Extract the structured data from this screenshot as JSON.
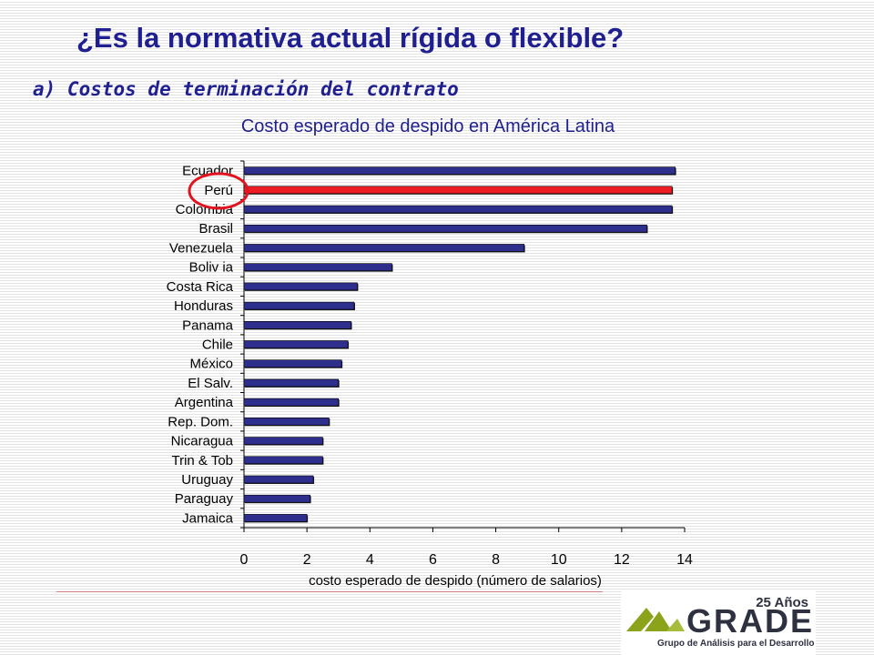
{
  "slide": {
    "title": "¿Es la normativa actual rígida o flexible?",
    "subtitle": "a) Costos de terminación del contrato"
  },
  "colors": {
    "bar": "#2e2e8c",
    "highlight_bar": "#ee1c24",
    "highlight_circle": "#e0141e",
    "title_text": "#1f1f8f",
    "logo_green": "#8aa31b"
  },
  "chart_data": {
    "type": "bar",
    "orientation": "horizontal",
    "title": "Costo esperado de despido en América Latina",
    "xlabel": "costo esperado de despido (número de salarios)",
    "ylabel": "",
    "xlim": [
      0,
      14
    ],
    "xticks": [
      0,
      2,
      4,
      6,
      8,
      10,
      12,
      14
    ],
    "categories": [
      "Ecuador",
      "Perú",
      "Colombia",
      "Brasil",
      "Venezuela",
      "Boliv ia",
      "Costa Rica",
      "Honduras",
      "Panama",
      "Chile",
      "México",
      "El Salv.",
      "Argentina",
      "Rep. Dom.",
      "Nicaragua",
      "Trin & Tob",
      "Uruguay",
      "Paraguay",
      "Jamaica"
    ],
    "values": [
      13.7,
      13.6,
      13.6,
      12.8,
      8.9,
      4.7,
      3.6,
      3.5,
      3.4,
      3.3,
      3.1,
      3.0,
      3.0,
      2.7,
      2.5,
      2.5,
      2.2,
      2.1,
      2.0
    ],
    "highlight": "Perú",
    "grid": false,
    "legend": "none"
  },
  "logo": {
    "years": "25 Años",
    "wordmark": "GRADE",
    "tagline": "Grupo de Análisis para el Desarrollo"
  }
}
